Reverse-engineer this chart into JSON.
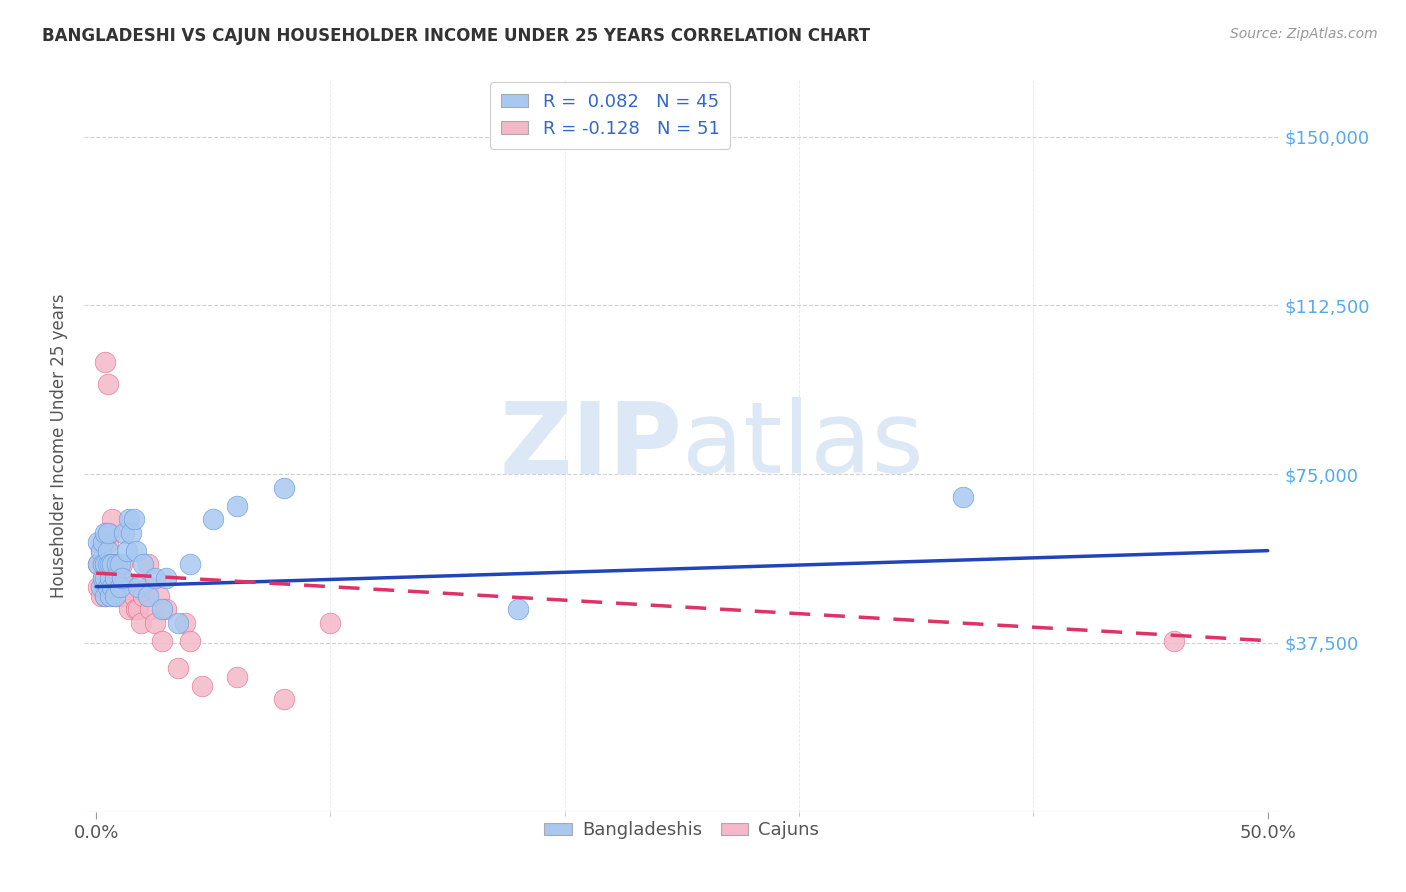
{
  "title": "BANGLADESHI VS CAJUN HOUSEHOLDER INCOME UNDER 25 YEARS CORRELATION CHART",
  "source": "Source: ZipAtlas.com",
  "ylabel": "Householder Income Under 25 years",
  "xlim": [
    -0.005,
    0.505
  ],
  "ylim": [
    0,
    162500
  ],
  "ytick_labels": [
    "$37,500",
    "$75,000",
    "$112,500",
    "$150,000"
  ],
  "ytick_vals": [
    37500,
    75000,
    112500,
    150000
  ],
  "xtick_labels": [
    "0.0%",
    "50.0%"
  ],
  "xtick_vals": [
    0.0,
    0.5
  ],
  "r_bangladeshi": 0.082,
  "n_bangladeshi": 45,
  "r_cajun": -0.128,
  "n_cajun": 51,
  "blue_color": "#a8c8f0",
  "blue_edge": "#6699dd",
  "pink_color": "#f4b8c8",
  "pink_edge": "#e07090",
  "blue_line_color": "#2244bb",
  "pink_line_color": "#dd3366",
  "watermark_color": "#dce8f5",
  "bangladeshi_x": [
    0.001,
    0.001,
    0.002,
    0.002,
    0.003,
    0.003,
    0.003,
    0.004,
    0.004,
    0.004,
    0.004,
    0.005,
    0.005,
    0.005,
    0.005,
    0.006,
    0.006,
    0.006,
    0.007,
    0.007,
    0.008,
    0.008,
    0.009,
    0.01,
    0.01,
    0.011,
    0.012,
    0.013,
    0.014,
    0.015,
    0.016,
    0.017,
    0.018,
    0.02,
    0.022,
    0.025,
    0.028,
    0.03,
    0.035,
    0.04,
    0.05,
    0.06,
    0.08,
    0.18,
    0.37
  ],
  "bangladeshi_y": [
    55000,
    60000,
    50000,
    58000,
    52000,
    55000,
    60000,
    48000,
    52000,
    55000,
    62000,
    50000,
    55000,
    58000,
    62000,
    48000,
    52000,
    55000,
    50000,
    55000,
    48000,
    52000,
    55000,
    50000,
    55000,
    52000,
    62000,
    58000,
    65000,
    62000,
    65000,
    58000,
    50000,
    55000,
    48000,
    52000,
    45000,
    52000,
    42000,
    55000,
    65000,
    68000,
    72000,
    45000,
    70000
  ],
  "cajun_x": [
    0.001,
    0.001,
    0.002,
    0.002,
    0.003,
    0.003,
    0.003,
    0.004,
    0.004,
    0.004,
    0.005,
    0.005,
    0.005,
    0.006,
    0.006,
    0.007,
    0.007,
    0.007,
    0.008,
    0.008,
    0.008,
    0.009,
    0.009,
    0.01,
    0.01,
    0.011,
    0.011,
    0.012,
    0.013,
    0.014,
    0.015,
    0.016,
    0.017,
    0.018,
    0.019,
    0.02,
    0.022,
    0.022,
    0.023,
    0.025,
    0.027,
    0.028,
    0.03,
    0.035,
    0.038,
    0.04,
    0.045,
    0.06,
    0.08,
    0.1,
    0.46
  ],
  "cajun_y": [
    50000,
    55000,
    48000,
    58000,
    52000,
    55000,
    60000,
    48000,
    55000,
    100000,
    50000,
    95000,
    60000,
    55000,
    62000,
    50000,
    55000,
    65000,
    48000,
    52000,
    55000,
    48000,
    55000,
    50000,
    52000,
    48000,
    55000,
    50000,
    48000,
    45000,
    50000,
    48000,
    45000,
    45000,
    42000,
    48000,
    50000,
    55000,
    45000,
    42000,
    48000,
    38000,
    45000,
    32000,
    42000,
    38000,
    28000,
    30000,
    25000,
    42000,
    38000
  ],
  "blue_line_x": [
    0.0,
    0.5
  ],
  "blue_line_y": [
    50000,
    58000
  ],
  "pink_line_x": [
    0.0,
    0.5
  ],
  "pink_line_y": [
    53000,
    38000
  ]
}
